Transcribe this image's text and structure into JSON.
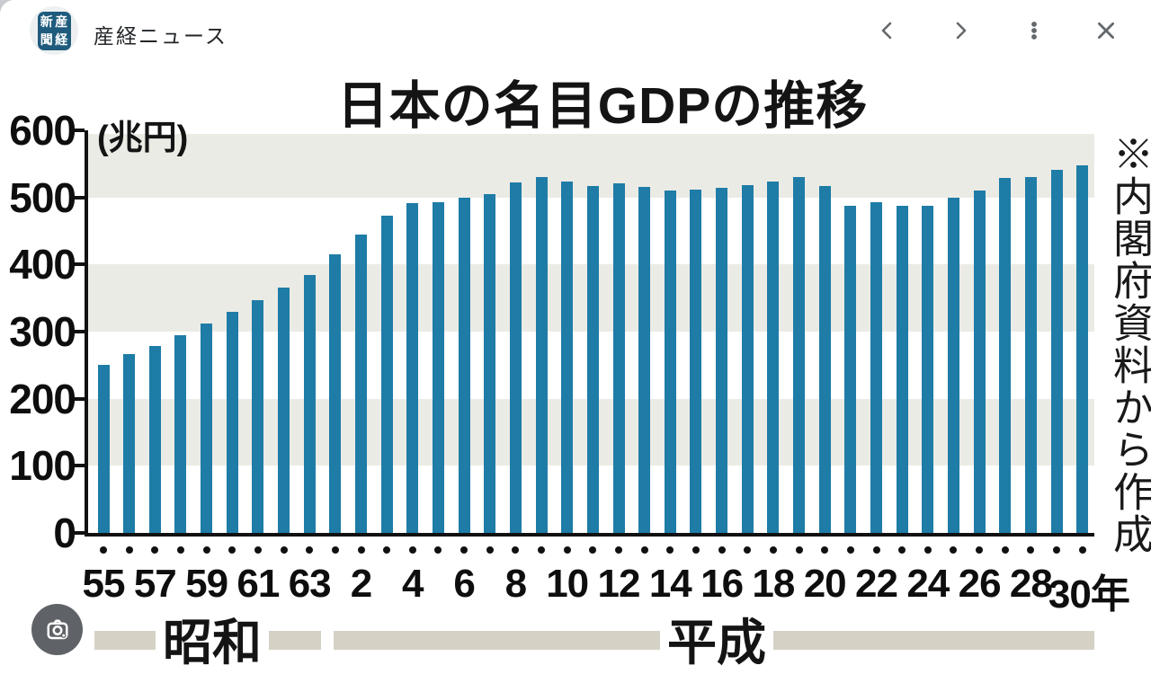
{
  "window": {
    "title": "産経ニュース",
    "logo": {
      "chars": [
        "産",
        "経",
        "新",
        "聞"
      ],
      "bg_color": "#1f5b7d"
    },
    "nav": {
      "back": "previous-image",
      "forward": "next-image",
      "menu": "more-options",
      "close": "close-viewer"
    }
  },
  "chart_data": {
    "type": "bar",
    "title": "日本の名目GDPの推移",
    "unit_label": "(兆円)",
    "source_note": "※内閣府資料から作成",
    "ylim": [
      0,
      600
    ],
    "yticks": [
      600,
      500,
      400,
      300,
      200,
      100,
      0
    ],
    "grid": "alternating horizontal gray bands each 100兆円, gray on 100-200 / 300-400 / 500-600",
    "legend_position": "none",
    "x_tick_labels": [
      "55",
      "57",
      "59",
      "61",
      "63",
      "2",
      "4",
      "6",
      "8",
      "10",
      "12",
      "14",
      "16",
      "18",
      "20",
      "22",
      "24",
      "26",
      "28",
      "30年"
    ],
    "era_labels": [
      {
        "label": "昭和"
      },
      {
        "label": "平成"
      }
    ],
    "categories": [
      "昭和55",
      "昭和56",
      "昭和57",
      "昭和58",
      "昭和59",
      "昭和60",
      "昭和61",
      "昭和62",
      "昭和63",
      "平成元",
      "平成2",
      "平成3",
      "平成4",
      "平成5",
      "平成6",
      "平成7",
      "平成8",
      "平成9",
      "平成10",
      "平成11",
      "平成12",
      "平成13",
      "平成14",
      "平成15",
      "平成16",
      "平成17",
      "平成18",
      "平成19",
      "平成20",
      "平成21",
      "平成22",
      "平成23",
      "平成24",
      "平成25",
      "平成26",
      "平成27",
      "平成28",
      "平成29",
      "平成30"
    ],
    "values": [
      250,
      266,
      278,
      294,
      312,
      330,
      347,
      365,
      384,
      415,
      445,
      473,
      491,
      493,
      499,
      505,
      523,
      530,
      524,
      517,
      521,
      516,
      510,
      512,
      514,
      518,
      524,
      530,
      517,
      487,
      493,
      488,
      487,
      499,
      510,
      529,
      531,
      541,
      548
    ],
    "bar_color": "#1e7ca7",
    "stripe_color": "#ebebe5",
    "era_band_color": "#d5d1c5"
  },
  "lens_button": {
    "icon": "camera-lens-icon"
  }
}
